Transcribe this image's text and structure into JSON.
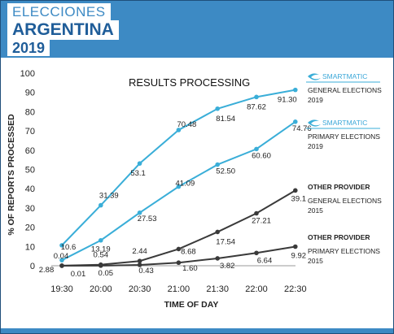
{
  "header": {
    "line1": "ELECCIONES",
    "line2": "ARGENTINA",
    "line3": "2019"
  },
  "colors": {
    "header_blue": "#3d8ac4",
    "smartmatic": "#3aaed8",
    "other_provider": "#3a3a3a"
  },
  "chart_data": {
    "type": "line",
    "title": "RESULTS PROCESSING",
    "xlabel": "TIME OF DAY",
    "ylabel": "% OF REPORTS PROCESSED",
    "categories": [
      "19:30",
      "20:00",
      "20:30",
      "21:00",
      "21:30",
      "22:00",
      "22:30"
    ],
    "yticks": [
      "0",
      "10",
      "20",
      "30",
      "40",
      "50",
      "60",
      "70",
      "80",
      "90",
      "100"
    ],
    "ylim": [
      0,
      100
    ],
    "grid": false,
    "series": [
      {
        "key": "sm_general",
        "values": [
          10.6,
          31.39,
          53.1,
          70.48,
          81.54,
          87.62,
          91.3
        ],
        "labels": [
          "10.6",
          "31.39",
          "53.1",
          "70.48",
          "81.54",
          "87.62",
          "91.30"
        ],
        "color": "#3aaed8",
        "legend": {
          "brand": "SMARTMATIC",
          "line1": "GENERAL ELECTIONS",
          "line2": "2019"
        }
      },
      {
        "key": "sm_primary",
        "values": [
          2.88,
          13.19,
          27.53,
          41.09,
          52.5,
          60.6,
          74.76
        ],
        "labels": [
          "2.88",
          "13.19",
          "27.53",
          "41.09",
          "52.50",
          "60.60",
          "74.76"
        ],
        "color": "#3aaed8",
        "legend": {
          "brand": "SMARTMATIC",
          "line1": "PRIMARY ELECTIONS",
          "line2": "2019"
        }
      },
      {
        "key": "op_general",
        "values": [
          0.04,
          0.54,
          2.44,
          8.68,
          17.54,
          27.21,
          39.1
        ],
        "labels": [
          "0.04",
          "0.54",
          "2.44",
          "8.68",
          "17.54",
          "27.21",
          "39.1"
        ],
        "color": "#3a3a3a",
        "legend": {
          "head": "OTHER PROVIDER",
          "line1": "GENERAL ELECTIONS",
          "line2": "2015"
        }
      },
      {
        "key": "op_primary",
        "values": [
          0.01,
          0.05,
          0.43,
          1.6,
          3.82,
          6.64,
          9.92
        ],
        "labels": [
          "0.01",
          "0.05",
          "0.43",
          "1.60",
          "3.82",
          "6.64",
          "9.92"
        ],
        "color": "#3a3a3a",
        "legend": {
          "head": "OTHER PROVIDER",
          "line1": "PRIMARY ELECTIONS",
          "line2": "2015"
        }
      }
    ]
  }
}
